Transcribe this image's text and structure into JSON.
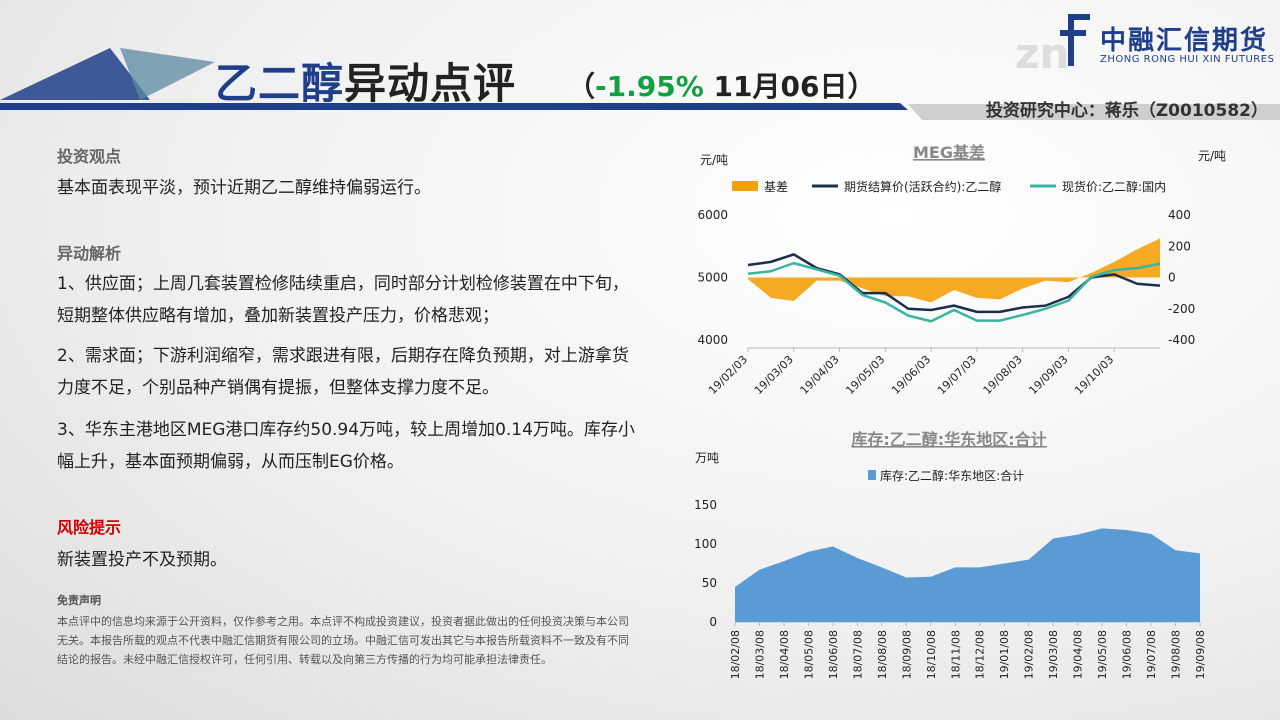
{
  "header": {
    "title_part1": "乙二醇",
    "title_part2": "异动点评",
    "paren_open": "（",
    "change_pct": "-1.95%",
    "date": " 11月06日",
    "paren_close": "）",
    "analyst": "投资研究中心：蒋乐（Z0010582）",
    "logo_cn": "中融汇信期货",
    "logo_en": "ZHONG RONG HUI XIN FUTURES"
  },
  "left": {
    "view_heading": "投资观点",
    "view_text": "基本面表现平淡，预计近期乙二醇维持偏弱运行。",
    "analysis_heading": "异动解析",
    "point1": "1、供应面；上周几套装置检修陆续重启，同时部分计划检修装置在中下旬，短期整体供应略有增加，叠加新装置投产压力，价格悲观；",
    "point2": "2、需求面；下游利润缩窄，需求跟进有限，后期存在降负预期，对上游拿货力度不足，个别品种产销偶有提振，但整体支撑力度不足。",
    "point3": "3、华东主港地区MEG港口库存约50.94万吨，较上周增加0.14万吨。库存小幅上升，基本面预期偏弱，从而压制EG价格。",
    "risk_heading": "风险提示",
    "risk_text": "新装置投产不及预期。",
    "disclaimer_title": "免责声明",
    "disclaimer_text": "本点评中的信息均来源于公开资料，仅作参考之用。本点评不构成投资建议，投资者据此做出的任何投资决策与本公司无关。本报告所载的观点不代表中融汇信期货有限公司的立场。中融汇信可发出其它与本报告所载资料不一致及有不同结论的报告。未经中融汇信授权许可，任何引用、转载以及向第三方传播的行为均可能承担法律责任。"
  },
  "colors": {
    "brand_blue": "#1f3f8a",
    "up_green": "#12a040",
    "risk_red": "#d00000",
    "basis_orange": "#f5a00a",
    "futures_navy": "#1b2f4e",
    "spot_teal": "#3ab5a0",
    "inventory_blue": "#5b9bd5"
  },
  "chart_data": [
    {
      "type": "line",
      "title": "MEG基差",
      "ylabel_left": "元/吨",
      "ylabel_right": "元/吨",
      "ylim_left": [
        4000,
        6000
      ],
      "yticks_left": [
        4000,
        5000,
        6000
      ],
      "ylim_right": [
        -400,
        400
      ],
      "yticks_right": [
        -400,
        -200,
        0,
        200,
        400
      ],
      "legend_position": "top",
      "x_ticks": [
        "19/02/03",
        "19/03/03",
        "19/04/03",
        "19/05/03",
        "19/06/03",
        "19/07/03",
        "19/08/03",
        "19/09/03",
        "19/10/03"
      ],
      "x": [
        "19/02/03",
        "19/02/17",
        "19/03/03",
        "19/03/17",
        "19/04/03",
        "19/04/17",
        "19/05/03",
        "19/05/17",
        "19/06/03",
        "19/06/17",
        "19/07/03",
        "19/07/17",
        "19/08/03",
        "19/08/17",
        "19/09/03",
        "19/09/17",
        "19/10/03",
        "19/10/17",
        "19/11/01"
      ],
      "series": [
        {
          "name": "基差",
          "type": "area",
          "axis": "right",
          "values": [
            -10,
            -130,
            -150,
            -20,
            -20,
            -70,
            -120,
            -120,
            -160,
            -80,
            -130,
            -140,
            -70,
            -20,
            -30,
            30,
            100,
            180,
            250
          ]
        },
        {
          "name": "期货结算价(活跃合约):乙二醇",
          "type": "line",
          "axis": "left",
          "values": [
            5200,
            5250,
            5370,
            5150,
            5050,
            4750,
            4750,
            4500,
            4480,
            4550,
            4450,
            4450,
            4520,
            4550,
            4690,
            5000,
            5050,
            4900,
            4870
          ]
        },
        {
          "name": "现货价:乙二醇:国内",
          "type": "line",
          "axis": "left",
          "values": [
            5060,
            5100,
            5230,
            5130,
            5030,
            4720,
            4600,
            4390,
            4300,
            4480,
            4310,
            4310,
            4400,
            4500,
            4630,
            5010,
            5120,
            5150,
            5220
          ]
        }
      ]
    },
    {
      "type": "area",
      "title": "库存:乙二醇:华东地区:合计",
      "ylabel": "万吨",
      "ylim": [
        0,
        150
      ],
      "yticks": [
        0,
        50,
        100,
        150
      ],
      "legend_position": "top",
      "categories": [
        "18/02/08",
        "18/03/08",
        "18/04/08",
        "18/05/08",
        "18/06/08",
        "18/07/08",
        "18/08/08",
        "18/09/08",
        "18/10/08",
        "18/11/08",
        "18/12/08",
        "19/01/08",
        "19/02/08",
        "19/03/08",
        "19/04/08",
        "19/05/08",
        "19/06/08",
        "19/07/08",
        "19/08/08",
        "19/09/08"
      ],
      "series": [
        {
          "name": "库存:乙二醇:华东地区:合计",
          "values": [
            45,
            67,
            78,
            90,
            97,
            82,
            70,
            57,
            58,
            70,
            70,
            75,
            80,
            107,
            112,
            120,
            118,
            113,
            92,
            88
          ]
        }
      ]
    }
  ]
}
